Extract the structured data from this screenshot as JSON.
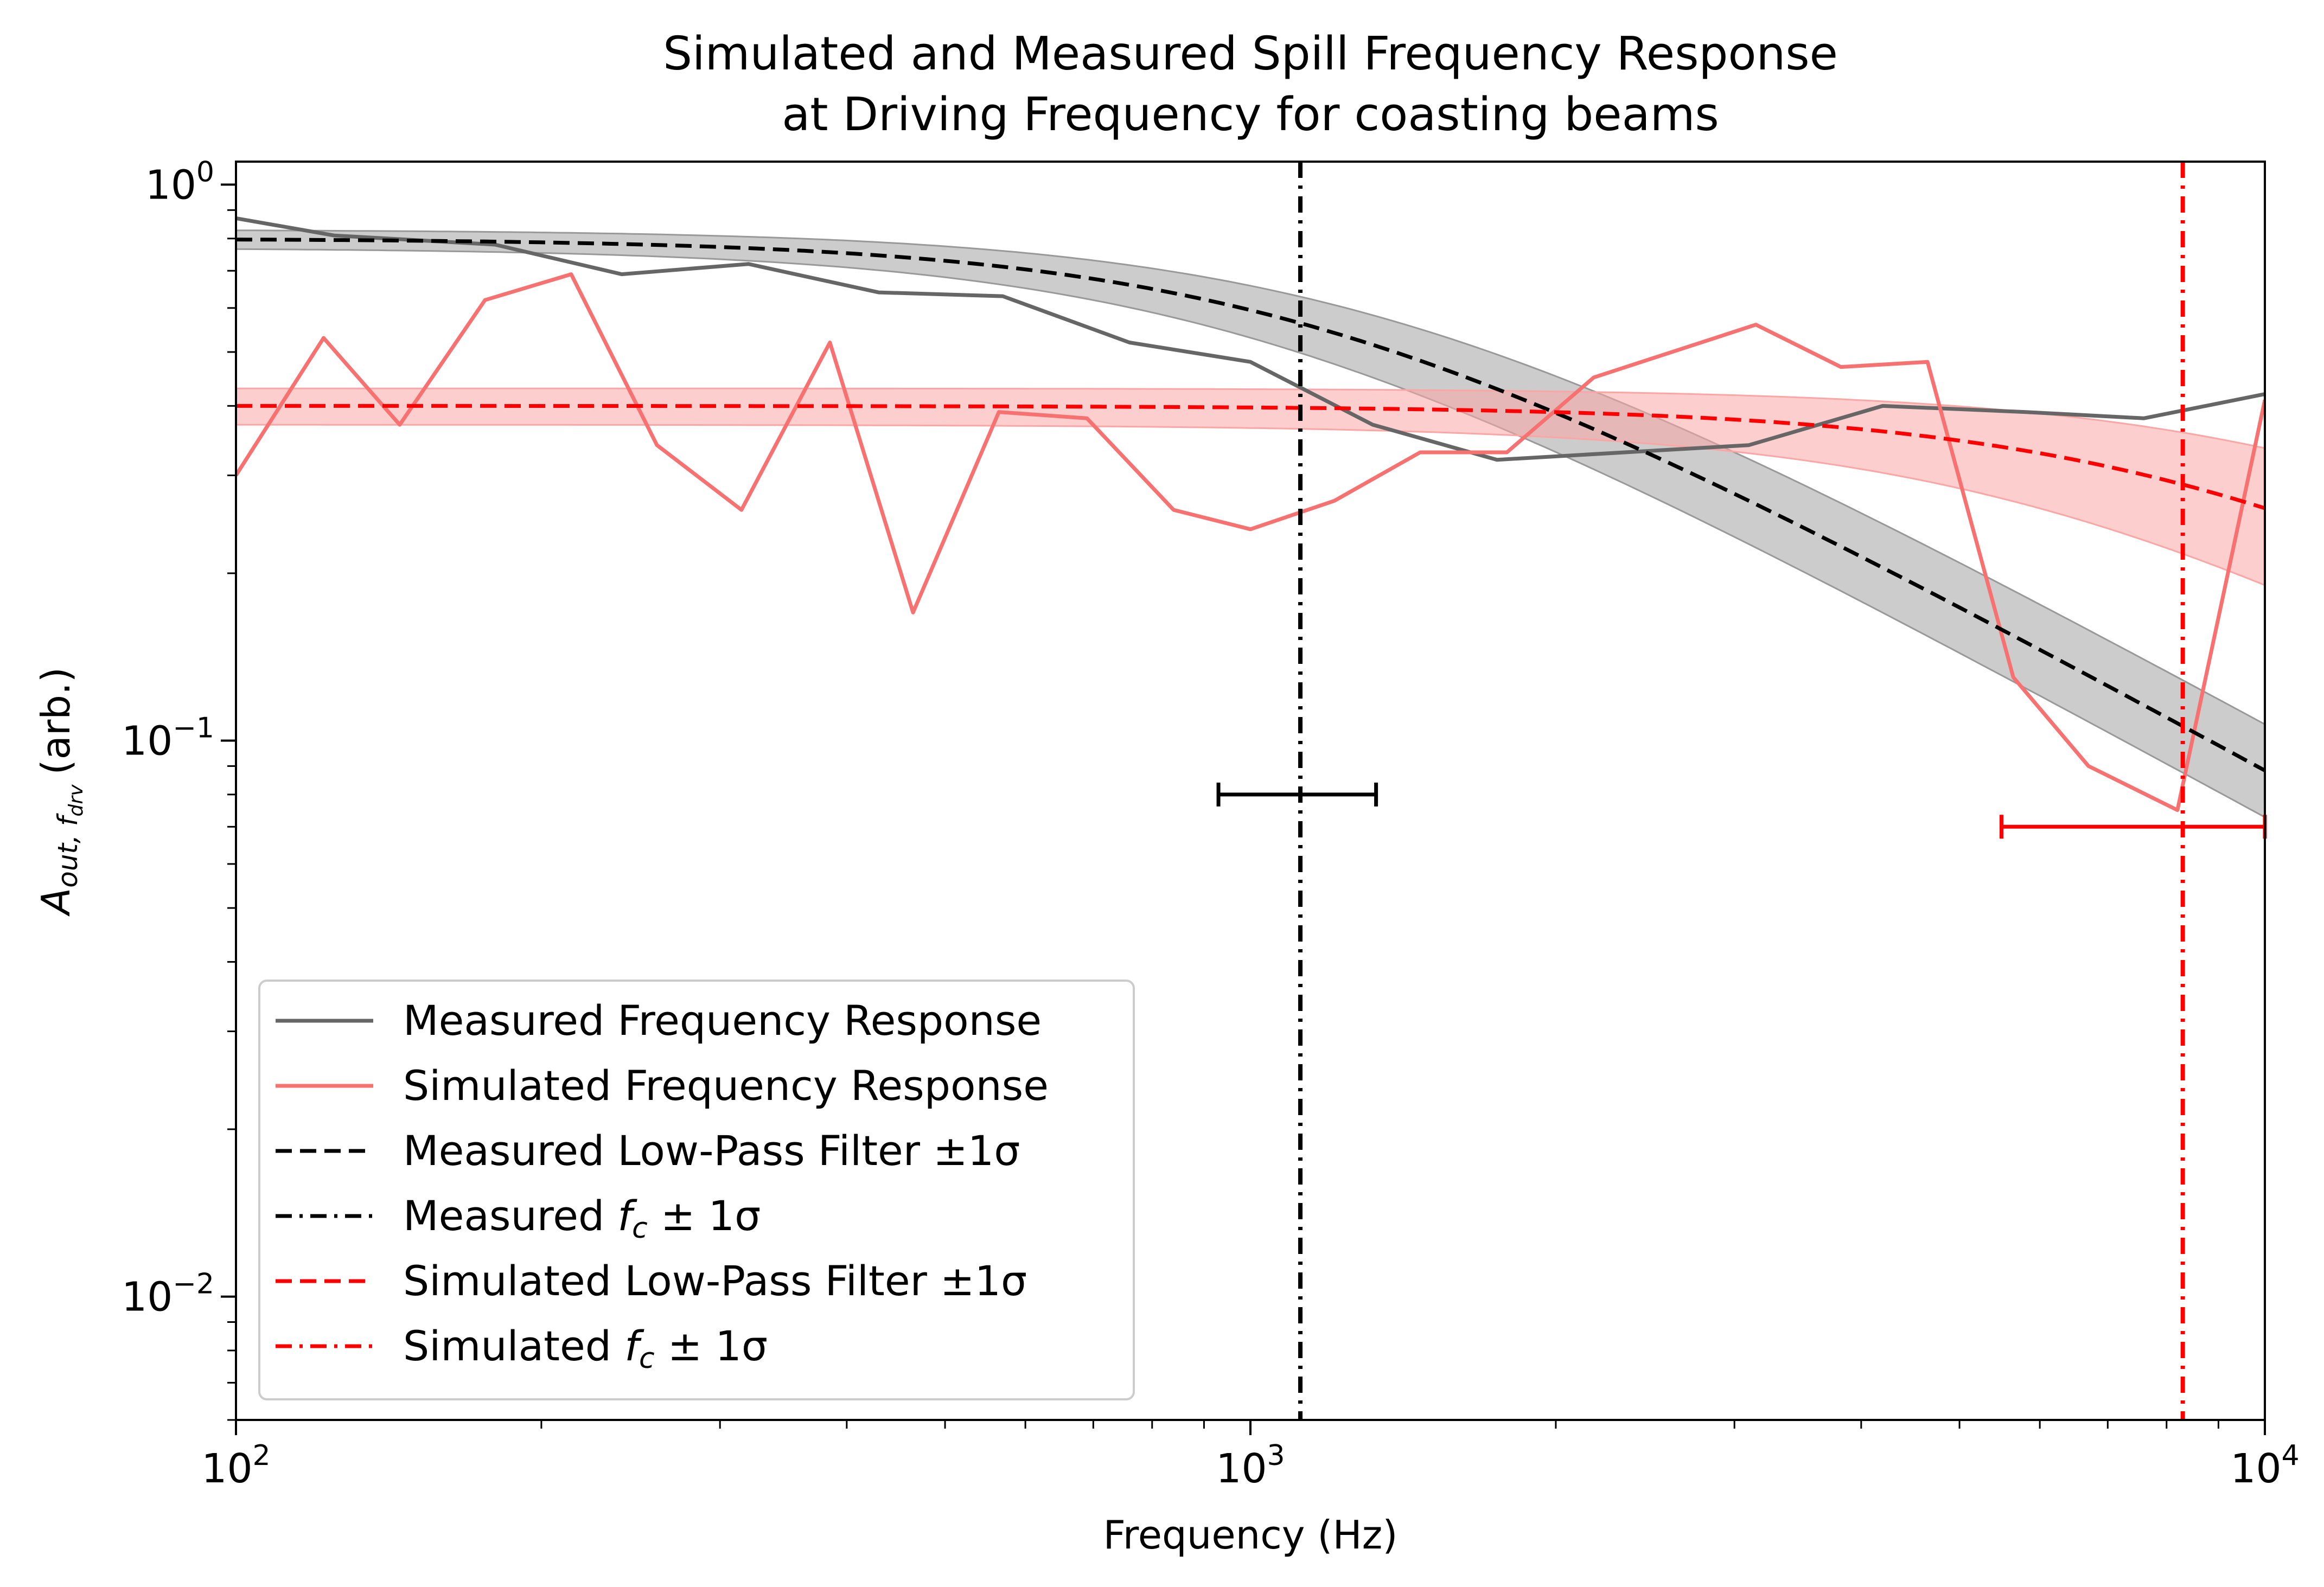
{
  "chart_data": {
    "type": "line",
    "title": [
      "Simulated and Measured Spill Frequency Response",
      "at Driving Frequency for coasting beams"
    ],
    "xlabel": "Frequency (Hz)",
    "ylabel": "(arb.)",
    "xscale": "log",
    "yscale": "log",
    "xlim": [
      100,
      10000
    ],
    "ylim": [
      0.006,
      1.1
    ],
    "grid": false,
    "legend_position": "lower-left",
    "x_ticks": [
      {
        "value": 100,
        "base": "10",
        "exp": "2"
      },
      {
        "value": 1000,
        "base": "10",
        "exp": "3"
      },
      {
        "value": 10000,
        "base": "10",
        "exp": "4"
      }
    ],
    "y_ticks": [
      {
        "value": 1,
        "base": "10",
        "exp": "0"
      },
      {
        "value": 0.1,
        "base": "10",
        "exp": "−1"
      },
      {
        "value": 0.01,
        "base": "10",
        "exp": "−2"
      }
    ],
    "series": [
      {
        "name": "Measured Frequency Response",
        "color": "#666666",
        "style": "solid",
        "x": [
          100,
          125,
          180,
          240,
          320,
          430,
          570,
          760,
          1000,
          1320,
          1750,
          3100,
          4200,
          5800,
          7600,
          10000
        ],
        "y": [
          0.87,
          0.81,
          0.78,
          0.69,
          0.72,
          0.64,
          0.63,
          0.52,
          0.48,
          0.37,
          0.32,
          0.34,
          0.4,
          0.39,
          0.38,
          0.42
        ]
      },
      {
        "name": "Simulated Frequency Response",
        "color": "#f87171",
        "style": "solid",
        "x": [
          100,
          122,
          145,
          176,
          214,
          260,
          315,
          385,
          465,
          565,
          690,
          840,
          1000,
          1210,
          1470,
          1790,
          2180,
          3150,
          3820,
          4650,
          5650,
          6700,
          8200,
          10000
        ],
        "y": [
          0.3,
          0.53,
          0.37,
          0.62,
          0.69,
          0.34,
          0.26,
          0.52,
          0.17,
          0.39,
          0.38,
          0.26,
          0.24,
          0.27,
          0.33,
          0.33,
          0.45,
          0.56,
          0.47,
          0.48,
          0.13,
          0.09,
          0.075,
          0.41
        ]
      },
      {
        "name": "Measured Low-Pass Filter ±1σ",
        "color": "#000000",
        "style": "dashed",
        "model": "lowpass",
        "amplitude": 0.8,
        "amplitude_band": [
          0.77,
          0.83
        ],
        "fc_band": [
          950,
          1300
        ]
      },
      {
        "name": "Measured f_c ± 1σ",
        "color": "#000000",
        "style": "dash-dot",
        "x_value": 1120,
        "error": {
          "low": 930,
          "high": 1330,
          "y": 0.08
        }
      },
      {
        "name": "Simulated Low-Pass Filter ±1σ",
        "color": "#ff0000",
        "style": "dashed",
        "model": "lowpass",
        "amplitude": 0.4,
        "amplitude_band": [
          0.37,
          0.43
        ],
        "fc_band": [
          6000,
          12500
        ]
      },
      {
        "name": "Simulated f_c ± 1σ",
        "color": "#ff0000",
        "style": "dash-dot",
        "x_value": 8300,
        "error": {
          "low": 5500,
          "high": 10000,
          "y": 0.07
        }
      }
    ]
  }
}
